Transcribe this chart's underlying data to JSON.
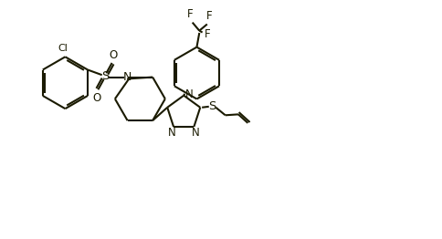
{
  "bg_color": "#ffffff",
  "line_color": "#1a1a00",
  "line_width": 1.5,
  "figsize": [
    4.84,
    2.62
  ],
  "dpi": 100,
  "xlim": [
    0,
    10
  ],
  "ylim": [
    0,
    5.5
  ]
}
